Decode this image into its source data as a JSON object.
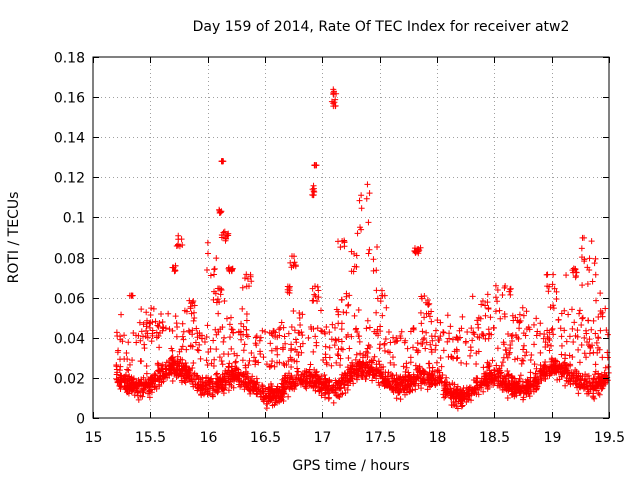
{
  "chart_data": {
    "type": "scatter",
    "title": "Day 159 of 2014, Rate Of TEC Index for receiver atw2",
    "xlabel": "GPS time / hours",
    "ylabel": "ROTI / TECUs",
    "xlim": [
      15,
      19.5
    ],
    "ylim": [
      0,
      0.18
    ],
    "x_ticks": [
      15,
      15.5,
      16,
      16.5,
      17,
      17.5,
      18,
      18.5,
      19,
      19.5
    ],
    "x_tick_labels": [
      "15",
      "15.5",
      "16",
      "16.5",
      "17",
      "17.5",
      "18",
      "18.5",
      "19",
      "19.5"
    ],
    "y_ticks": [
      0,
      0.02,
      0.04,
      0.06,
      0.08,
      0.1,
      0.12,
      0.14,
      0.16,
      0.18
    ],
    "y_tick_labels": [
      "0",
      "0.02",
      "0.04",
      "0.06",
      "0.08",
      "0.1",
      "0.12",
      "0.14",
      "0.16",
      "0.18"
    ],
    "grid": true,
    "marker": "plus",
    "marker_color": "#ff0000",
    "baseline": {
      "x_start": 15.2,
      "x_end": 19.5,
      "typical_range": [
        0.005,
        0.04
      ],
      "upper_band": [
        0.04,
        0.055
      ],
      "density_note": "dense scatter of many points across the time range"
    },
    "clusters": [
      {
        "x": [
          15.32,
          15.35
        ],
        "y": [
          0.061,
          0.061
        ]
      },
      {
        "x": [
          15.45,
          15.6
        ],
        "y": [
          0.045,
          0.055
        ]
      },
      {
        "x": [
          15.68,
          15.72
        ],
        "y": [
          0.073,
          0.076
        ]
      },
      {
        "x": [
          15.72,
          15.78
        ],
        "y": [
          0.085,
          0.091
        ]
      },
      {
        "x": [
          15.8,
          15.9
        ],
        "y": [
          0.045,
          0.06
        ]
      },
      {
        "x": [
          15.95,
          16.08
        ],
        "y": [
          0.07,
          0.092
        ]
      },
      {
        "x": [
          16.05,
          16.15
        ],
        "y": [
          0.055,
          0.065
        ]
      },
      {
        "x": [
          16.1,
          16.12
        ],
        "y": [
          0.102,
          0.104
        ]
      },
      {
        "x": [
          16.12,
          16.14
        ],
        "y": [
          0.128,
          0.128
        ]
      },
      {
        "x": [
          16.12,
          16.18
        ],
        "y": [
          0.088,
          0.093
        ]
      },
      {
        "x": [
          16.18,
          16.22
        ],
        "y": [
          0.073,
          0.075
        ]
      },
      {
        "x": [
          16.28,
          16.35
        ],
        "y": [
          0.04,
          0.048
        ]
      },
      {
        "x": [
          16.3,
          16.38
        ],
        "y": [
          0.063,
          0.072
        ]
      },
      {
        "x": [
          16.68,
          16.72
        ],
        "y": [
          0.062,
          0.066
        ]
      },
      {
        "x": [
          16.72,
          16.8
        ],
        "y": [
          0.075,
          0.082
        ]
      },
      {
        "x": [
          16.9,
          16.93
        ],
        "y": [
          0.111,
          0.117
        ]
      },
      {
        "x": [
          16.93,
          16.95
        ],
        "y": [
          0.126,
          0.126
        ]
      },
      {
        "x": [
          16.9,
          16.98
        ],
        "y": [
          0.058,
          0.068
        ]
      },
      {
        "x": [
          17.08,
          17.12
        ],
        "y": [
          0.154,
          0.164
        ]
      },
      {
        "x": [
          17.12,
          17.2
        ],
        "y": [
          0.085,
          0.09
        ]
      },
      {
        "x": [
          17.15,
          17.25
        ],
        "y": [
          0.055,
          0.063
        ]
      },
      {
        "x": [
          17.25,
          17.3
        ],
        "y": [
          0.072,
          0.083
        ]
      },
      {
        "x": [
          17.3,
          17.45
        ],
        "y": [
          0.09,
          0.121
        ]
      },
      {
        "x": [
          17.38,
          17.48
        ],
        "y": [
          0.072,
          0.088
        ]
      },
      {
        "x": [
          17.45,
          17.55
        ],
        "y": [
          0.058,
          0.065
        ]
      },
      {
        "x": [
          17.8,
          17.88
        ],
        "y": [
          0.082,
          0.085
        ]
      },
      {
        "x": [
          17.85,
          17.95
        ],
        "y": [
          0.05,
          0.061
        ]
      },
      {
        "x": [
          18.3,
          18.45
        ],
        "y": [
          0.05,
          0.062
        ]
      },
      {
        "x": [
          18.5,
          18.65
        ],
        "y": [
          0.058,
          0.066
        ]
      },
      {
        "x": [
          18.6,
          18.75
        ],
        "y": [
          0.045,
          0.056
        ]
      },
      {
        "x": [
          18.95,
          19.05
        ],
        "y": [
          0.055,
          0.074
        ]
      },
      {
        "x": [
          19.12,
          19.22
        ],
        "y": [
          0.07,
          0.075
        ]
      },
      {
        "x": [
          19.25,
          19.35
        ],
        "y": [
          0.064,
          0.09
        ]
      },
      {
        "x": [
          19.35,
          19.45
        ],
        "y": [
          0.05,
          0.08
        ]
      }
    ]
  }
}
